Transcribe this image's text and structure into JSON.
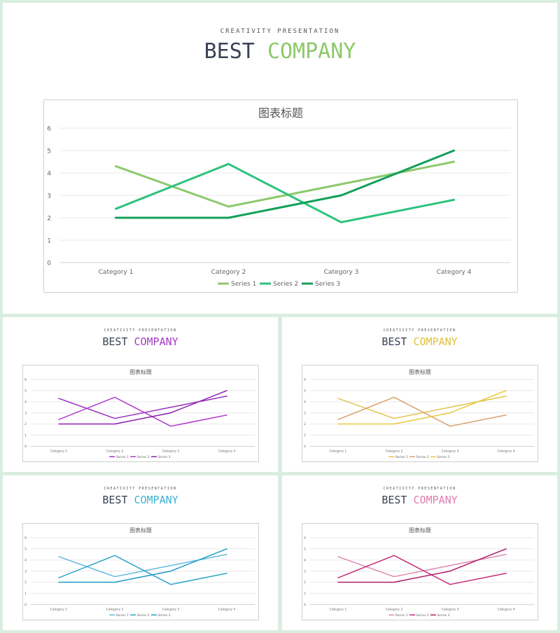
{
  "slides": [
    {
      "kicker": "CREATIVITY PRESENTATION",
      "title_word1": "BEST",
      "title_word2": "COMPANY",
      "accent": "#8cc96a",
      "chart_data": {
        "type": "line",
        "title": "图表标题",
        "categories": [
          "Category 1",
          "Category 2",
          "Category 3",
          "Category 4"
        ],
        "ylim": [
          0,
          6
        ],
        "yticks": [
          0,
          1,
          2,
          3,
          4,
          5,
          6
        ],
        "grid": true,
        "legend": "bottom",
        "series": [
          {
            "name": "Series 1",
            "values": [
              4.3,
              2.5,
              3.5,
              4.5
            ],
            "color": "#8cc96a"
          },
          {
            "name": "Series 2",
            "values": [
              2.4,
              4.4,
              1.8,
              2.8
            ],
            "color": "#2ec27e"
          },
          {
            "name": "Series 3",
            "values": [
              2.0,
              2.0,
              3.0,
              5.0
            ],
            "color": "#13a05a"
          }
        ]
      }
    },
    {
      "kicker": "CREATIVITY PRESENTATION",
      "title_word1": "BEST",
      "title_word2": "COMPANY",
      "accent": "#a43cc4",
      "chart_data": {
        "type": "line",
        "title": "图表标题",
        "categories": [
          "Category 1",
          "Category 2",
          "Category 3",
          "Category 4"
        ],
        "ylim": [
          0,
          6
        ],
        "yticks": [
          0,
          1,
          2,
          3,
          4,
          5,
          6
        ],
        "grid": true,
        "legend": "bottom",
        "series": [
          {
            "name": "Series 1",
            "values": [
              4.3,
              2.5,
              3.5,
              4.5
            ],
            "color": "#9b2fc0"
          },
          {
            "name": "Series 2",
            "values": [
              2.4,
              4.4,
              1.8,
              2.8
            ],
            "color": "#b13bd0"
          },
          {
            "name": "Series 3",
            "values": [
              2.0,
              2.0,
              3.0,
              5.0
            ],
            "color": "#8a1fb0"
          }
        ]
      }
    },
    {
      "kicker": "CREATIVITY PRESENTATION",
      "title_word1": "BEST",
      "title_word2": "COMPANY",
      "accent": "#e2c03c",
      "chart_data": {
        "type": "line",
        "title": "图表标题",
        "categories": [
          "Category 1",
          "Category 2",
          "Category 3",
          "Category 4"
        ],
        "ylim": [
          0,
          6
        ],
        "yticks": [
          0,
          1,
          2,
          3,
          4,
          5,
          6
        ],
        "grid": true,
        "legend": "bottom",
        "series": [
          {
            "name": "Series 1",
            "values": [
              4.3,
              2.5,
              3.5,
              4.5
            ],
            "color": "#e3c24a"
          },
          {
            "name": "Series 2",
            "values": [
              2.4,
              4.4,
              1.8,
              2.8
            ],
            "color": "#d9a06a"
          },
          {
            "name": "Series 3",
            "values": [
              2.0,
              2.0,
              3.0,
              5.0
            ],
            "color": "#e8c93c"
          }
        ]
      }
    },
    {
      "kicker": "CREATIVITY PRESENTATION",
      "title_word1": "BEST",
      "title_word2": "COMPANY",
      "accent": "#3bb3d3",
      "chart_data": {
        "type": "line",
        "title": "图表标题",
        "categories": [
          "Category 1",
          "Category 2",
          "Category 3",
          "Category 4"
        ],
        "ylim": [
          0,
          6
        ],
        "yticks": [
          0,
          1,
          2,
          3,
          4,
          5,
          6
        ],
        "grid": true,
        "legend": "bottom",
        "series": [
          {
            "name": "Series 1",
            "values": [
              4.3,
              2.5,
              3.5,
              4.5
            ],
            "color": "#62b9de"
          },
          {
            "name": "Series 2",
            "values": [
              2.4,
              4.4,
              1.8,
              2.8
            ],
            "color": "#2ea6c8"
          },
          {
            "name": "Series 3",
            "values": [
              2.0,
              2.0,
              3.0,
              5.0
            ],
            "color": "#1f9ac4"
          }
        ]
      }
    },
    {
      "kicker": "CREATIVITY PRESENTATION",
      "title_word1": "BEST",
      "title_word2": "COMPANY",
      "accent": "#e07cb0",
      "chart_data": {
        "type": "line",
        "title": "图表标题",
        "categories": [
          "Category 1",
          "Category 2",
          "Category 3",
          "Category 4"
        ],
        "ylim": [
          0,
          6
        ],
        "yticks": [
          0,
          1,
          2,
          3,
          4,
          5,
          6
        ],
        "grid": true,
        "legend": "bottom",
        "series": [
          {
            "name": "Series 1",
            "values": [
              4.3,
              2.5,
              3.5,
              4.5
            ],
            "color": "#e087b0"
          },
          {
            "name": "Series 2",
            "values": [
              2.4,
              4.4,
              1.8,
              2.8
            ],
            "color": "#c72b7a"
          },
          {
            "name": "Series 3",
            "values": [
              2.0,
              2.0,
              3.0,
              5.0
            ],
            "color": "#b01c6a"
          }
        ]
      }
    }
  ]
}
